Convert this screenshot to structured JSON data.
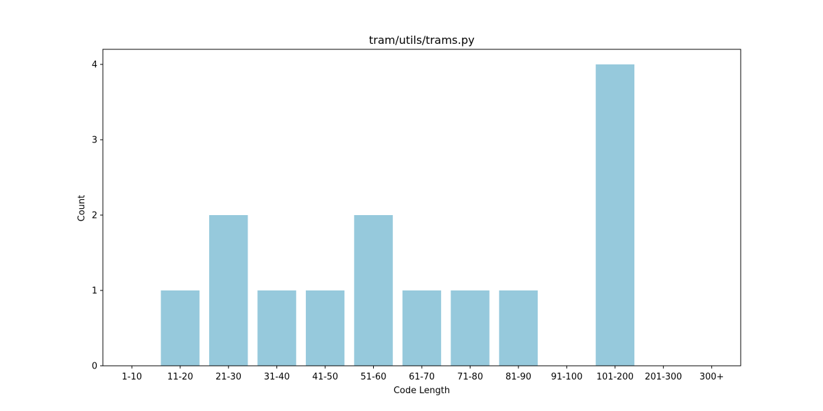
{
  "chart_data": {
    "type": "bar",
    "title": "tram/utils/trams.py",
    "xlabel": "Code Length",
    "ylabel": "Count",
    "categories": [
      "1-10",
      "11-20",
      "21-30",
      "31-40",
      "41-50",
      "51-60",
      "61-70",
      "71-80",
      "81-90",
      "91-100",
      "101-200",
      "201-300",
      "300+"
    ],
    "values": [
      0,
      1,
      2,
      1,
      1,
      2,
      1,
      1,
      1,
      0,
      4,
      0,
      0
    ],
    "ylim": [
      0,
      4.2
    ],
    "yticks": [
      0,
      1,
      2,
      3,
      4
    ],
    "bar_color": "#96c9dc",
    "grid": false,
    "legend": "none"
  }
}
